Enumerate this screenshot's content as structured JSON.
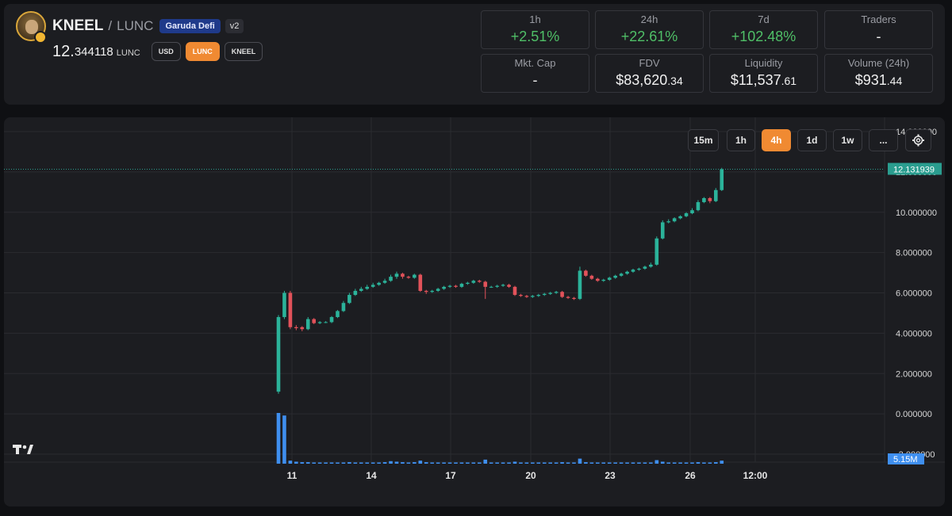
{
  "pair": {
    "base": "KNEEL",
    "slash": "/",
    "quote": "LUNC",
    "dex_badge": "Garuda Defi",
    "version_badge": "v2",
    "price_main": "12.",
    "price_small": "344118",
    "price_unit": "LUNC",
    "currency_buttons": [
      "USD",
      "LUNC",
      "KNEEL"
    ]
  },
  "stats": [
    {
      "label": "1h",
      "value": "+2.51%"
    },
    {
      "label": "24h",
      "value": "+22.61%"
    },
    {
      "label": "7d",
      "value": "+102.48%"
    },
    {
      "label": "Traders",
      "value": "-"
    },
    {
      "label": "Mkt. Cap",
      "value": "-"
    },
    {
      "label": "FDV",
      "value_main": "$83,620",
      "value_small": ".34"
    },
    {
      "label": "Liquidity",
      "value_main": "$11,537",
      "value_small": ".61"
    },
    {
      "label": "Volume (24h)",
      "value_main": "$931",
      "value_small": ".44"
    }
  ],
  "timeframes": [
    "15m",
    "1h",
    "4h",
    "1d",
    "1w",
    "..."
  ],
  "active_timeframe": "4h",
  "colors": {
    "up": "#4fbf67",
    "candle_up": "#2bb39a",
    "candle_down": "#e2525a",
    "accent": "#f08a32",
    "volume": "#3f8fef",
    "last_price_tag": "#2a9d8f"
  },
  "chart_data": {
    "type": "candlestick",
    "x_ticks": [
      "11",
      "14",
      "17",
      "20",
      "23",
      "26",
      "12:00"
    ],
    "y_ticks": [
      "14.000000",
      "12.000000",
      "10.000000",
      "8.000000",
      "6.000000",
      "4.000000",
      "2.000000",
      "0.000000",
      "-2.000000"
    ],
    "ylim": [
      -2,
      14
    ],
    "last_price_label": "12.131939",
    "last_price": 12.131939,
    "volume_label": "5.15M",
    "grid": true,
    "candles": [
      [
        1.1,
        4.8,
        1.0,
        4.9
      ],
      [
        4.8,
        6.0,
        4.7,
        6.1
      ],
      [
        6.0,
        4.3,
        4.2,
        6.1
      ],
      [
        4.3,
        4.25,
        4.15,
        4.4
      ],
      [
        4.3,
        4.2,
        4.1,
        4.35
      ],
      [
        4.2,
        4.7,
        4.15,
        4.8
      ],
      [
        4.7,
        4.5,
        4.45,
        4.75
      ],
      [
        4.5,
        4.55,
        4.45,
        4.6
      ],
      [
        4.55,
        4.55,
        4.5,
        4.6
      ],
      [
        4.55,
        4.8,
        4.5,
        4.85
      ],
      [
        4.8,
        5.1,
        4.75,
        5.15
      ],
      [
        5.1,
        5.5,
        5.05,
        5.6
      ],
      [
        5.5,
        5.9,
        5.45,
        6.0
      ],
      [
        5.9,
        6.1,
        5.85,
        6.2
      ],
      [
        6.1,
        6.2,
        6.05,
        6.3
      ],
      [
        6.2,
        6.3,
        6.15,
        6.4
      ],
      [
        6.3,
        6.4,
        6.25,
        6.5
      ],
      [
        6.4,
        6.5,
        6.35,
        6.55
      ],
      [
        6.5,
        6.6,
        6.45,
        6.7
      ],
      [
        6.6,
        6.8,
        6.55,
        6.9
      ],
      [
        6.8,
        6.95,
        6.7,
        7.05
      ],
      [
        6.95,
        6.8,
        6.7,
        7.0
      ],
      [
        6.8,
        6.75,
        6.7,
        6.85
      ],
      [
        6.75,
        6.9,
        6.7,
        6.95
      ],
      [
        6.9,
        6.1,
        6.05,
        6.95
      ],
      [
        6.1,
        6.05,
        5.95,
        6.15
      ],
      [
        6.05,
        6.1,
        6.0,
        6.15
      ],
      [
        6.1,
        6.2,
        6.05,
        6.25
      ],
      [
        6.2,
        6.3,
        6.15,
        6.35
      ],
      [
        6.3,
        6.35,
        6.25,
        6.4
      ],
      [
        6.35,
        6.3,
        6.25,
        6.4
      ],
      [
        6.3,
        6.45,
        6.25,
        6.5
      ],
      [
        6.45,
        6.5,
        6.4,
        6.55
      ],
      [
        6.5,
        6.6,
        6.45,
        6.65
      ],
      [
        6.6,
        6.55,
        6.5,
        6.65
      ],
      [
        6.55,
        6.3,
        5.7,
        6.6
      ],
      [
        6.3,
        6.3,
        6.25,
        6.35
      ],
      [
        6.3,
        6.35,
        6.25,
        6.4
      ],
      [
        6.35,
        6.4,
        6.3,
        6.45
      ],
      [
        6.4,
        6.3,
        6.25,
        6.45
      ],
      [
        6.3,
        5.9,
        5.85,
        6.35
      ],
      [
        5.9,
        5.85,
        5.8,
        5.95
      ],
      [
        5.85,
        5.8,
        5.75,
        5.9
      ],
      [
        5.8,
        5.85,
        5.75,
        5.9
      ],
      [
        5.85,
        5.9,
        5.8,
        5.95
      ],
      [
        5.9,
        5.95,
        5.85,
        6.0
      ],
      [
        5.95,
        6.0,
        5.9,
        6.05
      ],
      [
        6.0,
        6.05,
        5.95,
        6.1
      ],
      [
        6.05,
        5.8,
        5.75,
        6.1
      ],
      [
        5.8,
        5.75,
        5.7,
        5.85
      ],
      [
        5.75,
        5.7,
        5.65,
        5.8
      ],
      [
        5.7,
        7.1,
        5.65,
        7.3
      ],
      [
        7.1,
        6.85,
        6.8,
        7.15
      ],
      [
        6.85,
        6.7,
        6.65,
        6.9
      ],
      [
        6.7,
        6.6,
        6.55,
        6.75
      ],
      [
        6.6,
        6.65,
        6.55,
        6.7
      ],
      [
        6.65,
        6.75,
        6.6,
        6.8
      ],
      [
        6.75,
        6.85,
        6.7,
        6.9
      ],
      [
        6.85,
        6.95,
        6.8,
        7.0
      ],
      [
        6.95,
        7.05,
        6.9,
        7.1
      ],
      [
        7.05,
        7.15,
        7.0,
        7.2
      ],
      [
        7.15,
        7.2,
        7.1,
        7.25
      ],
      [
        7.2,
        7.3,
        7.15,
        7.35
      ],
      [
        7.3,
        7.4,
        7.25,
        7.5
      ],
      [
        7.4,
        8.7,
        7.35,
        8.8
      ],
      [
        8.7,
        9.5,
        8.65,
        9.6
      ],
      [
        9.5,
        9.55,
        9.45,
        9.65
      ],
      [
        9.55,
        9.7,
        9.5,
        9.75
      ],
      [
        9.7,
        9.8,
        9.65,
        9.85
      ],
      [
        9.8,
        9.95,
        9.75,
        10.0
      ],
      [
        9.95,
        10.1,
        9.9,
        10.2
      ],
      [
        10.1,
        10.5,
        10.05,
        10.6
      ],
      [
        10.5,
        10.7,
        10.45,
        10.75
      ],
      [
        10.7,
        10.55,
        10.45,
        10.75
      ],
      [
        10.55,
        11.1,
        10.5,
        11.2
      ],
      [
        11.1,
        12.13,
        11.05,
        12.2
      ]
    ],
    "volumes": [
      1.0,
      0.95,
      0.06,
      0.04,
      0.03,
      0.03,
      0.02,
      0.02,
      0.02,
      0.02,
      0.02,
      0.02,
      0.03,
      0.02,
      0.02,
      0.02,
      0.02,
      0.02,
      0.03,
      0.05,
      0.04,
      0.03,
      0.02,
      0.03,
      0.06,
      0.03,
      0.02,
      0.02,
      0.02,
      0.02,
      0.02,
      0.02,
      0.02,
      0.02,
      0.02,
      0.08,
      0.02,
      0.02,
      0.02,
      0.02,
      0.04,
      0.02,
      0.02,
      0.02,
      0.02,
      0.02,
      0.02,
      0.02,
      0.03,
      0.02,
      0.02,
      0.1,
      0.03,
      0.02,
      0.02,
      0.02,
      0.02,
      0.02,
      0.02,
      0.02,
      0.02,
      0.02,
      0.02,
      0.02,
      0.07,
      0.04,
      0.02,
      0.02,
      0.02,
      0.02,
      0.02,
      0.03,
      0.02,
      0.02,
      0.03,
      0.06
    ]
  }
}
